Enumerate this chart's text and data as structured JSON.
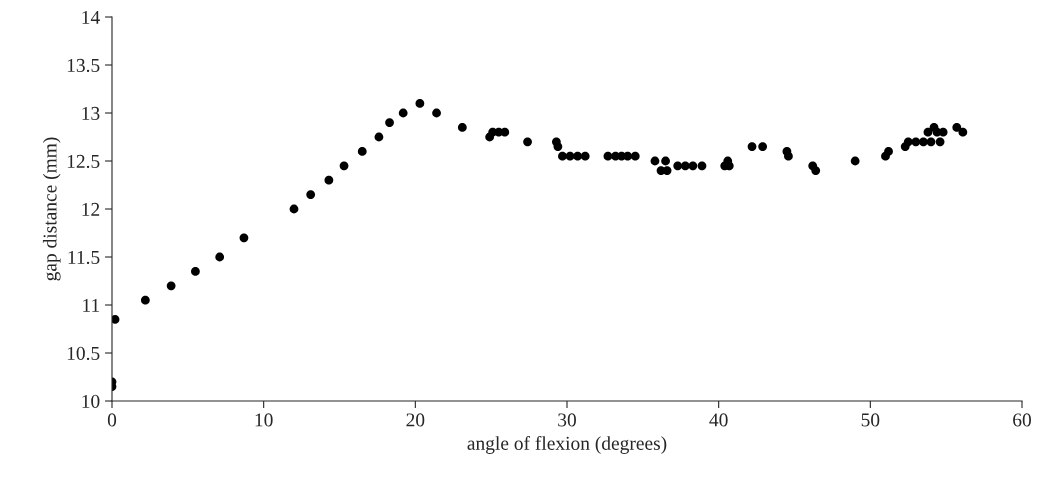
{
  "chart_data": {
    "type": "scatter",
    "xlabel": "angle of flexion (degrees)",
    "ylabel": "gap distance (mm)",
    "xlim": [
      0,
      60
    ],
    "xticks": [
      0,
      10,
      20,
      30,
      40,
      50,
      60
    ],
    "ylim": [
      10,
      14
    ],
    "yticks": [
      10,
      {
        "value": 10.5,
        "label": "10.5"
      },
      11,
      {
        "value": 11.5,
        "label": "11.5"
      },
      12,
      {
        "value": 12.5,
        "label": "12.5"
      },
      13,
      {
        "value": 13.5,
        "label": "13.5"
      },
      14
    ],
    "grid": false,
    "marker": "circle",
    "series": [
      {
        "color": "#000000",
        "x": [
          0,
          0,
          0.2,
          2.2,
          3.9,
          5.5,
          7.1,
          8.7,
          12,
          13.1,
          14.3,
          15.3,
          16.5,
          17.6,
          18.3,
          19.2,
          20.3,
          21.4,
          23.1,
          24.9,
          25.1,
          25.5,
          25.9,
          27.4,
          29.3,
          29.4,
          29.7,
          30.2,
          30.7,
          31.2,
          32.7,
          33.2,
          33.6,
          34,
          34.5,
          35.8,
          36.2,
          36.5,
          36.6,
          37.3,
          37.8,
          38.3,
          38.9,
          40.4,
          40.6,
          40.7,
          42.2,
          42.9,
          44.5,
          44.6,
          46.2,
          46.4,
          49,
          51,
          51.2,
          52.3,
          52.5,
          53,
          53.5,
          53.8,
          54,
          54.2,
          54.4,
          54.6,
          54.8,
          55.7,
          56.1
        ],
        "values": [
          10.2,
          10.15,
          10.85,
          11.05,
          11.2,
          11.35,
          11.5,
          11.7,
          12,
          12.15,
          12.3,
          12.45,
          12.6,
          12.75,
          12.9,
          13,
          13.1,
          13,
          12.85,
          12.75,
          12.8,
          12.8,
          12.8,
          12.7,
          12.7,
          12.65,
          12.55,
          12.55,
          12.55,
          12.55,
          12.55,
          12.55,
          12.55,
          12.55,
          12.55,
          12.5,
          12.4,
          12.5,
          12.4,
          12.45,
          12.45,
          12.45,
          12.45,
          12.45,
          12.5,
          12.45,
          12.65,
          12.65,
          12.6,
          12.55,
          12.45,
          12.4,
          12.5,
          12.55,
          12.6,
          12.65,
          12.7,
          12.7,
          12.7,
          12.8,
          12.7,
          12.85,
          12.8,
          12.7,
          12.8,
          12.85,
          12.8
        ]
      }
    ]
  }
}
